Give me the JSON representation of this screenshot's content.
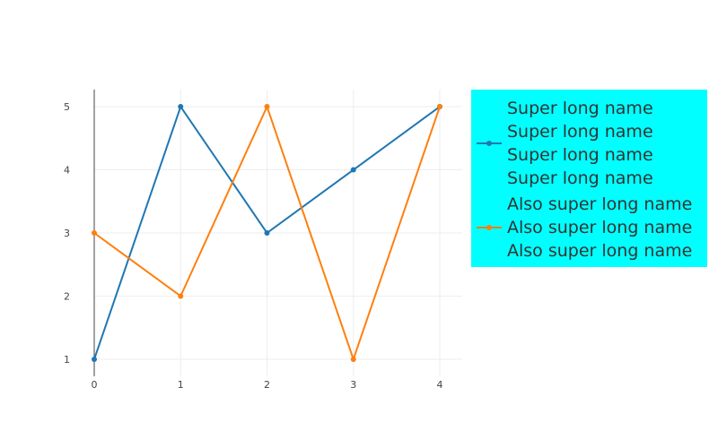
{
  "chart_data": {
    "type": "line",
    "title": "",
    "xlabel": "",
    "ylabel": "",
    "x": [
      0,
      1,
      2,
      3,
      4
    ],
    "xlim": [
      0,
      4
    ],
    "ylim": [
      0.73,
      5.27
    ],
    "x_ticks": [
      0,
      1,
      2,
      3,
      4
    ],
    "y_ticks": [
      1,
      2,
      3,
      4,
      5
    ],
    "grid": true,
    "legend_placement": "right",
    "legend_background": "#00ffff",
    "series": [
      {
        "name_lines": [
          "Super long name",
          "Super long name",
          "Super long name",
          "Super long name"
        ],
        "values": [
          1,
          5,
          3,
          4,
          5
        ],
        "color": "#1f77b4",
        "mode": "lines+markers"
      },
      {
        "name_lines": [
          "Also super long name",
          "Also super long name",
          "Also super long name"
        ],
        "values": [
          3,
          2,
          5,
          1,
          5
        ],
        "color": "#ff7f0e",
        "mode": "lines+markers"
      }
    ]
  }
}
